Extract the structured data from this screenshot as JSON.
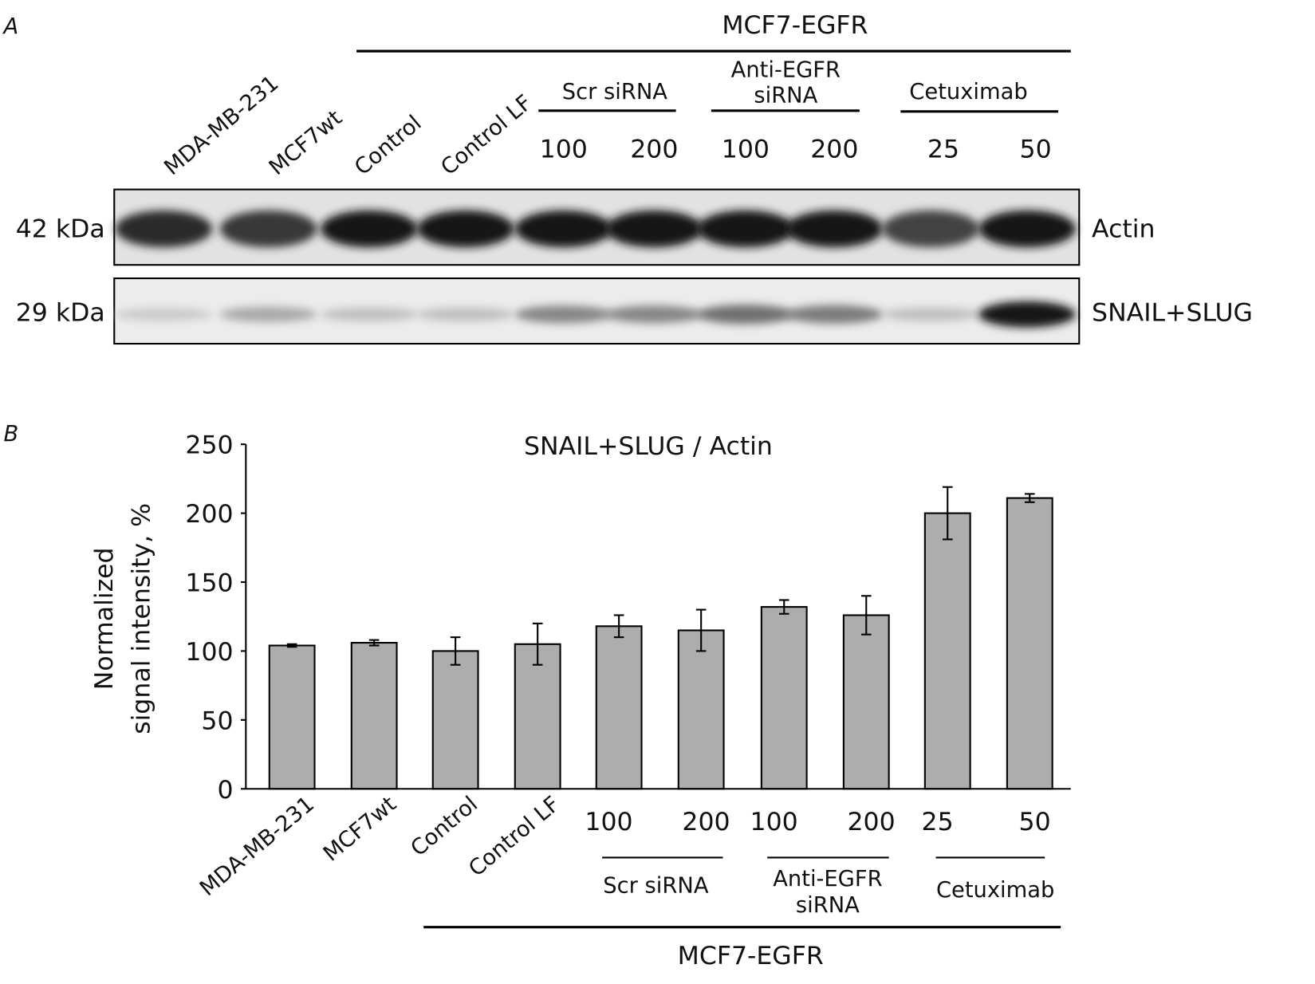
{
  "panel_a": {
    "label": "A",
    "group_title": "MCF7-EGFR",
    "lanes": [
      "MDA-MB-231",
      "MCF7wt",
      "Control",
      "Control LF"
    ],
    "subgroups": [
      {
        "name": "Scr siRNA",
        "doses": [
          "100",
          "200"
        ]
      },
      {
        "name_line1": "Anti-EGFR",
        "name_line2": "siRNA",
        "doses": [
          "100",
          "200"
        ]
      },
      {
        "name": "Cetuximab",
        "doses": [
          "25",
          "50"
        ]
      }
    ],
    "blots": [
      {
        "kda": "42 kDa",
        "protein": "Actin",
        "intensity": [
          0.85,
          0.8,
          0.95,
          0.95,
          0.95,
          0.95,
          0.95,
          0.95,
          0.75,
          0.95
        ]
      },
      {
        "kda": "29 kDa",
        "protein": "SNAIL+SLUG",
        "intensity": [
          0.15,
          0.3,
          0.2,
          0.2,
          0.45,
          0.45,
          0.55,
          0.5,
          0.2,
          0.95
        ]
      }
    ]
  },
  "panel_b": {
    "label": "B",
    "mcf7_label": "MCF7-EGFR",
    "subgroups": [
      {
        "name": "Scr siRNA"
      },
      {
        "name_line1": "Anti-EGFR",
        "name_line2": "siRNA"
      },
      {
        "name": "Cetuximab"
      }
    ]
  },
  "chart_data": {
    "type": "bar",
    "title": "SNAIL+SLUG / Actin",
    "xlabel": "",
    "ylabel_line1": "Normalized",
    "ylabel_line2": "signal intensity, %",
    "ylim": [
      0,
      250
    ],
    "yticks": [
      "0",
      "50",
      "100",
      "150",
      "200",
      "250"
    ],
    "categories": [
      "MDA-MB-231",
      "MCF7wt",
      "Control",
      "Control LF",
      "100",
      "200",
      "100",
      "200",
      "25",
      "50"
    ],
    "values": [
      104,
      106,
      100,
      105,
      118,
      115,
      132,
      126,
      200,
      211
    ],
    "errors": [
      1,
      2,
      10,
      15,
      8,
      15,
      5,
      14,
      19,
      3
    ],
    "bar_color": "#adadad",
    "grid": false
  }
}
